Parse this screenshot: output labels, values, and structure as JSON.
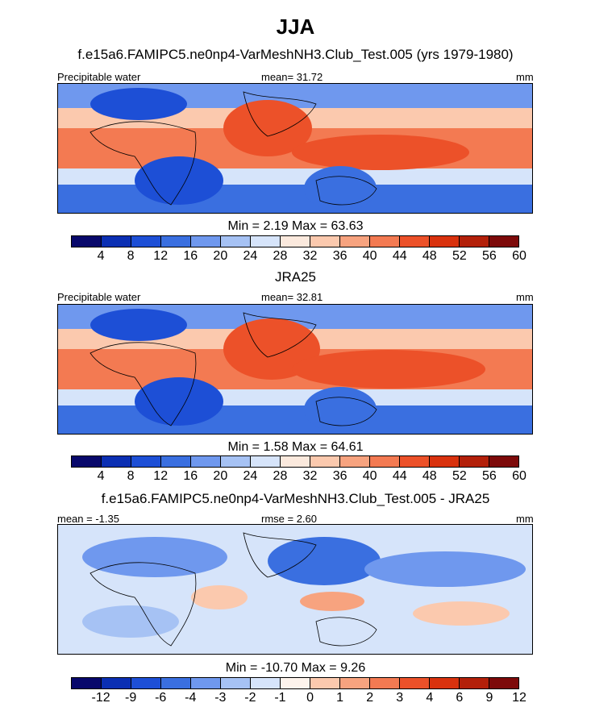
{
  "title": "JJA",
  "panels": [
    {
      "subtitle": "f.e15a6.FAMIPC5.ne0np4-VarMeshNH3.Club_Test.005 (yrs 1979-1980)",
      "left_label": "Precipitable water",
      "center_label": "mean=  31.72",
      "right_label": "mm",
      "minmax": "Min =   2.19 Max =  63.63",
      "kind": "field"
    },
    {
      "subtitle": "JRA25",
      "left_label": "Precipitable water",
      "center_label": "mean=  32.81",
      "right_label": "mm",
      "minmax": "Min =   1.58 Max =  64.61",
      "kind": "field"
    },
    {
      "subtitle": "f.e15a6.FAMIPC5.ne0np4-VarMeshNH3.Club_Test.005 - JRA25",
      "left_label": "mean =  -1.35",
      "center_label": "rmse =   2.60",
      "right_label": "mm",
      "minmax": "Min = -10.70 Max =   9.26",
      "kind": "diff"
    }
  ],
  "colorbar_field": {
    "colors": [
      "#08086b",
      "#0b2fb3",
      "#1d4fd6",
      "#3a6fe0",
      "#6f98ee",
      "#a6c2f4",
      "#d6e4fa",
      "#fbe9dd",
      "#fbc9ae",
      "#f7a37f",
      "#f37a52",
      "#ec5129",
      "#d9320e",
      "#b3200a",
      "#7d0a0a"
    ],
    "ticks": [
      "4",
      "8",
      "12",
      "16",
      "20",
      "24",
      "28",
      "32",
      "36",
      "40",
      "44",
      "48",
      "52",
      "56",
      "60"
    ]
  },
  "colorbar_diff": {
    "colors": [
      "#08086b",
      "#0b2fb3",
      "#1d4fd6",
      "#3a6fe0",
      "#6f98ee",
      "#a6c2f4",
      "#d6e4fa",
      "#fdf3ec",
      "#fbc9ae",
      "#f7a37f",
      "#f37a52",
      "#ec5129",
      "#d9320e",
      "#b3200a",
      "#7d0a0a"
    ],
    "ticks": [
      "-12",
      "-9",
      "-6",
      "-4",
      "-3",
      "-2",
      "-1",
      "0",
      "1",
      "2",
      "3",
      "4",
      "6",
      "9",
      "12"
    ]
  }
}
